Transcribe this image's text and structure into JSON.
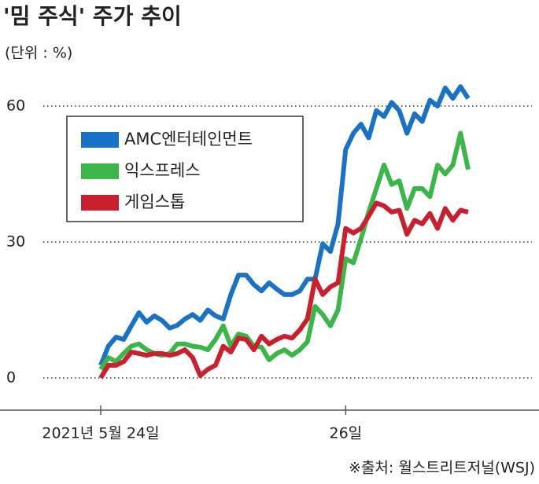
{
  "chart_data": {
    "type": "line",
    "title": "'밈 주식' 주가 추이",
    "subtitle": "(단위 : %)",
    "source": "※출처: 월스트리트저널(WSJ)",
    "categories": [
      "2021년 5월 24일",
      null,
      null,
      null,
      null,
      null,
      null,
      null,
      null,
      null,
      null,
      null,
      null,
      null,
      null,
      null,
      null,
      null,
      null,
      null,
      null,
      null,
      null,
      null,
      null,
      null,
      null,
      null,
      null,
      null,
      null,
      null,
      "26일",
      null,
      null,
      null,
      null,
      null,
      null,
      null,
      null,
      null,
      null,
      null,
      null,
      null,
      null,
      null,
      null
    ],
    "series": [
      {
        "name": "AMC엔터테인먼트",
        "color": "#1a72c4",
        "values": [
          2.8,
          7,
          9,
          8.5,
          11.5,
          14.4,
          12.3,
          13.7,
          12.7,
          11,
          11.6,
          13,
          14,
          12.7,
          15,
          13.7,
          13,
          18.4,
          22.7,
          22.7,
          20.6,
          19.2,
          21,
          19.6,
          18.4,
          18.4,
          19.2,
          21.8,
          21.8,
          29.6,
          27.9,
          34,
          50.4,
          54,
          56,
          53,
          59,
          57.7,
          60.8,
          59,
          54,
          58.3,
          56.6,
          61.3,
          60,
          64,
          61.7,
          64.3,
          61.7
        ]
      },
      {
        "name": "익스프레스",
        "color": "#3cb54a",
        "values": [
          1.9,
          4.5,
          3.6,
          5.4,
          7,
          7.5,
          6.2,
          5.4,
          5,
          5.4,
          7.5,
          7.5,
          7,
          6.8,
          6.2,
          8.5,
          11.5,
          7,
          9.7,
          9.2,
          7,
          6.8,
          4,
          5.4,
          6.2,
          5,
          6.2,
          8,
          15.8,
          14,
          11.5,
          15,
          26.3,
          25.4,
          30.7,
          36.6,
          41.8,
          47,
          42.7,
          43.5,
          37.4,
          41.8,
          41.8,
          40,
          47,
          45,
          47,
          54,
          46
        ]
      },
      {
        "name": "게임스톱",
        "color": "#c8202f",
        "values": [
          0,
          2.8,
          2.8,
          3.6,
          5.7,
          5.4,
          5,
          5.4,
          5.4,
          5,
          5.4,
          6.2,
          4.5,
          0.5,
          1.9,
          2.8,
          7,
          5.7,
          8.8,
          8.5,
          6.2,
          9.2,
          7.5,
          8.5,
          9.2,
          8.8,
          10.6,
          13,
          21.8,
          18.4,
          20.1,
          21,
          33,
          32,
          33,
          35.7,
          38.6,
          38,
          36.6,
          37,
          31.7,
          34.8,
          34,
          36.3,
          33,
          37.4,
          34.8,
          37,
          36.6
        ]
      }
    ],
    "ylim": [
      0,
      60
    ],
    "yticks": [
      0,
      30,
      60
    ],
    "grid": true
  }
}
